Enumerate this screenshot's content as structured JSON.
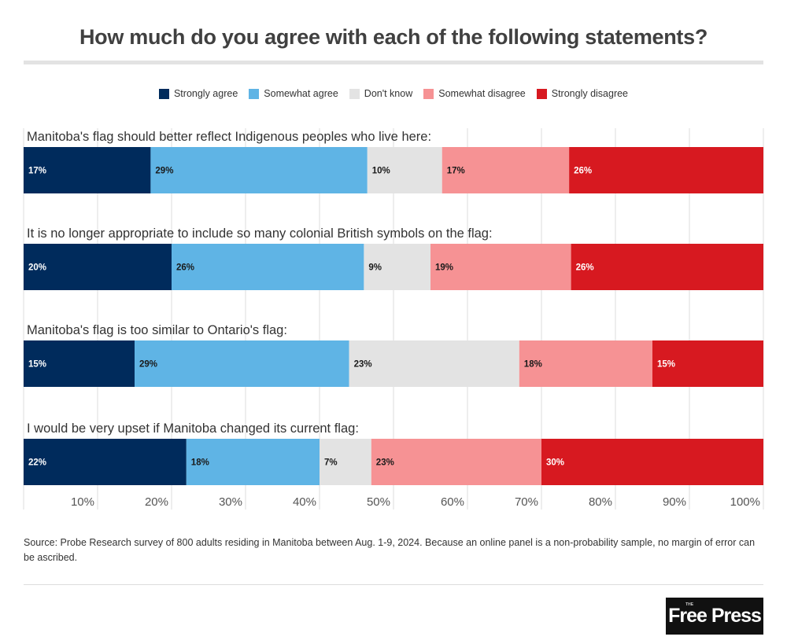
{
  "chart_data": {
    "type": "bar",
    "orientation": "horizontal",
    "stacked": true,
    "normalized_100": true,
    "title": "How much do you agree with each of the following statements?",
    "categories": [
      "Manitoba's flag should better reflect Indigenous peoples who live here:",
      "It is no longer appropriate to include so many colonial British symbols on the flag:",
      "Manitoba's flag is too similar to Ontario's flag:",
      "I would be very upset if Manitoba changed its current flag:"
    ],
    "series": [
      {
        "name": "Strongly agree",
        "color": "#002b5c",
        "label_color": "#ffffff",
        "values": [
          17,
          20,
          15,
          22
        ]
      },
      {
        "name": "Somewhat agree",
        "color": "#5fb4e5",
        "label_color": "#1a1a1a",
        "values": [
          29,
          26,
          29,
          18
        ]
      },
      {
        "name": "Don't know",
        "color": "#e3e3e3",
        "label_color": "#1a1a1a",
        "values": [
          10,
          9,
          23,
          7
        ]
      },
      {
        "name": "Somewhat disagree",
        "color": "#f69294",
        "label_color": "#1a1a1a",
        "values": [
          17,
          19,
          18,
          23
        ]
      },
      {
        "name": "Strongly disagree",
        "color": "#d71920",
        "label_color": "#ffffff",
        "values": [
          26,
          26,
          15,
          30
        ]
      }
    ],
    "xlabel": "",
    "ylabel": "",
    "xlim": [
      0,
      100
    ],
    "x_ticks": [
      "10%",
      "20%",
      "30%",
      "40%",
      "50%",
      "60%",
      "70%",
      "80%",
      "90%",
      "100%"
    ],
    "grid": true,
    "legend_position": "top-center"
  },
  "source": "Source: Probe Research survey of 800 adults residing in Manitoba between Aug. 1-9, 2024. Because an online panel is a non-probability sample, no margin of error can be ascribed.",
  "logo": {
    "small": "THE",
    "text": "Free Press"
  }
}
